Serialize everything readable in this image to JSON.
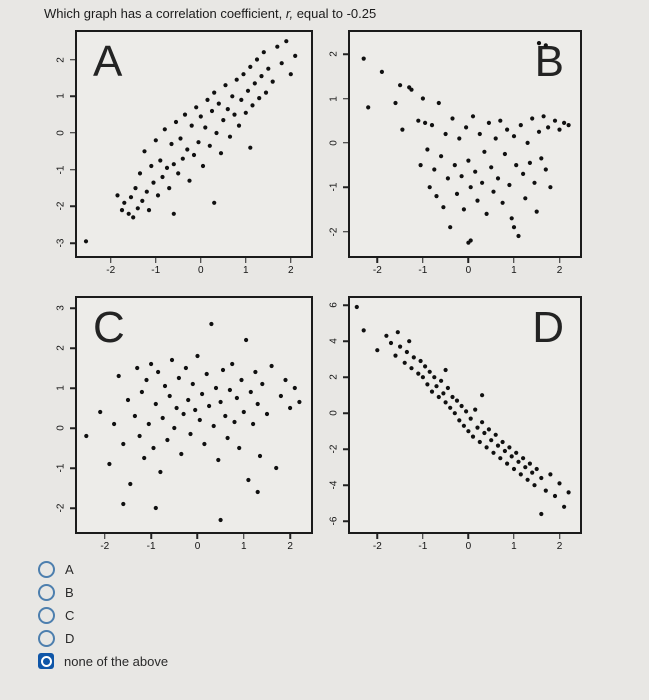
{
  "question": {
    "prefix": "Which graph has a correlation coefficient, ",
    "rvar": "r,",
    "suffix": " equal to -0.25"
  },
  "options": [
    {
      "label": "A",
      "selected": false
    },
    {
      "label": "B",
      "selected": false
    },
    {
      "label": "C",
      "selected": false
    },
    {
      "label": "D",
      "selected": false
    },
    {
      "label": "none of the above",
      "selected": true
    }
  ],
  "colors": {
    "point": "#101010",
    "plot_border": "#1b1b1b",
    "radio_border": "#4d7fae",
    "selected_fill": "#0f56a8",
    "background": "#e8e7e4"
  },
  "chart_data": [
    {
      "type": "scatter",
      "label": "A",
      "correlation": "strong positive",
      "xlim": [
        -2.75,
        2.45
      ],
      "ylim": [
        -3.35,
        2.75
      ],
      "x_ticks": [
        -2,
        -1,
        0,
        1,
        2
      ],
      "y_ticks": [
        2,
        1,
        0,
        -1,
        -2,
        -3
      ],
      "points": [
        [
          -2.55,
          -2.95
        ],
        [
          -1.85,
          -1.7
        ],
        [
          -1.75,
          -2.1
        ],
        [
          -1.7,
          -1.9
        ],
        [
          -1.6,
          -2.2
        ],
        [
          -1.55,
          -1.75
        ],
        [
          -1.5,
          -2.3
        ],
        [
          -1.45,
          -1.5
        ],
        [
          -1.4,
          -2.05
        ],
        [
          -1.35,
          -1.1
        ],
        [
          -1.3,
          -1.85
        ],
        [
          -1.25,
          -0.5
        ],
        [
          -1.2,
          -1.6
        ],
        [
          -1.15,
          -2.1
        ],
        [
          -1.1,
          -0.9
        ],
        [
          -1.05,
          -1.35
        ],
        [
          -1.0,
          -0.2
        ],
        [
          -0.95,
          -1.7
        ],
        [
          -0.9,
          -0.75
        ],
        [
          -0.85,
          -1.2
        ],
        [
          -0.8,
          0.1
        ],
        [
          -0.75,
          -0.95
        ],
        [
          -0.7,
          -1.5
        ],
        [
          -0.65,
          -0.3
        ],
        [
          -0.6,
          -0.85
        ],
        [
          -0.55,
          0.3
        ],
        [
          -0.5,
          -1.1
        ],
        [
          -0.45,
          -0.15
        ],
        [
          -0.4,
          -0.7
        ],
        [
          -0.35,
          0.5
        ],
        [
          -0.3,
          -0.45
        ],
        [
          -0.25,
          -1.3
        ],
        [
          -0.2,
          0.2
        ],
        [
          -0.15,
          -0.6
        ],
        [
          -0.1,
          0.7
        ],
        [
          -0.05,
          -0.25
        ],
        [
          0.0,
          0.45
        ],
        [
          0.05,
          -0.9
        ],
        [
          0.1,
          0.15
        ],
        [
          0.15,
          0.9
        ],
        [
          0.2,
          -0.35
        ],
        [
          0.25,
          0.6
        ],
        [
          0.3,
          1.1
        ],
        [
          0.35,
          0.0
        ],
        [
          0.4,
          0.8
        ],
        [
          0.45,
          -0.55
        ],
        [
          0.5,
          0.35
        ],
        [
          0.55,
          1.3
        ],
        [
          0.6,
          0.65
        ],
        [
          0.65,
          -0.1
        ],
        [
          0.7,
          1.0
        ],
        [
          0.75,
          0.5
        ],
        [
          0.8,
          1.45
        ],
        [
          0.85,
          0.2
        ],
        [
          0.9,
          0.9
        ],
        [
          0.95,
          1.6
        ],
        [
          1.0,
          0.55
        ],
        [
          1.05,
          1.15
        ],
        [
          1.1,
          1.8
        ],
        [
          1.15,
          0.75
        ],
        [
          1.2,
          1.35
        ],
        [
          1.25,
          2.0
        ],
        [
          1.3,
          0.95
        ],
        [
          1.35,
          1.55
        ],
        [
          1.4,
          2.2
        ],
        [
          1.45,
          1.1
        ],
        [
          1.5,
          1.75
        ],
        [
          1.6,
          1.4
        ],
        [
          1.7,
          2.35
        ],
        [
          1.8,
          1.9
        ],
        [
          1.9,
          2.5
        ],
        [
          2.0,
          1.6
        ],
        [
          2.1,
          2.1
        ],
        [
          0.3,
          -1.9
        ],
        [
          1.1,
          -0.4
        ],
        [
          -0.6,
          -2.2
        ]
      ]
    },
    {
      "type": "scatter",
      "label": "B",
      "correlation": "weak negative",
      "xlim": [
        -2.6,
        2.45
      ],
      "ylim": [
        -2.55,
        2.5
      ],
      "x_ticks": [
        -2,
        -1,
        0,
        1,
        2
      ],
      "y_ticks": [
        2,
        1,
        0,
        -1,
        -2
      ],
      "points": [
        [
          1.55,
          2.25
        ],
        [
          1.7,
          2.2
        ],
        [
          -2.3,
          1.9
        ],
        [
          -2.2,
          0.8
        ],
        [
          -1.9,
          1.6
        ],
        [
          -1.6,
          0.9
        ],
        [
          -1.5,
          1.3
        ],
        [
          -1.45,
          0.3
        ],
        [
          -1.3,
          1.25
        ],
        [
          -1.25,
          1.2
        ],
        [
          -1.1,
          0.5
        ],
        [
          -1.05,
          -0.5
        ],
        [
          -1.0,
          1.0
        ],
        [
          -0.95,
          0.45
        ],
        [
          -0.9,
          -0.15
        ],
        [
          -0.85,
          -1.0
        ],
        [
          -0.8,
          0.4
        ],
        [
          -0.75,
          -0.6
        ],
        [
          -0.7,
          -1.2
        ],
        [
          -0.65,
          0.9
        ],
        [
          -0.6,
          -0.3
        ],
        [
          -0.55,
          -1.45
        ],
        [
          -0.5,
          0.2
        ],
        [
          -0.45,
          -0.8
        ],
        [
          -0.4,
          -1.9
        ],
        [
          -0.35,
          0.55
        ],
        [
          -0.3,
          -0.5
        ],
        [
          -0.25,
          -1.15
        ],
        [
          -0.2,
          0.1
        ],
        [
          -0.15,
          -0.75
        ],
        [
          -0.1,
          -1.5
        ],
        [
          -0.05,
          0.35
        ],
        [
          0.0,
          -0.4
        ],
        [
          0.0,
          -2.25
        ],
        [
          0.05,
          -1.0
        ],
        [
          0.1,
          0.6
        ],
        [
          0.15,
          -0.65
        ],
        [
          0.2,
          -1.3
        ],
        [
          0.25,
          0.2
        ],
        [
          0.3,
          -0.9
        ],
        [
          0.35,
          -0.2
        ],
        [
          0.4,
          -1.6
        ],
        [
          0.45,
          0.45
        ],
        [
          0.5,
          -0.55
        ],
        [
          0.55,
          -1.1
        ],
        [
          0.6,
          0.1
        ],
        [
          0.65,
          -0.8
        ],
        [
          0.7,
          0.5
        ],
        [
          0.75,
          -1.35
        ],
        [
          0.8,
          -0.25
        ],
        [
          0.85,
          0.3
        ],
        [
          0.9,
          -0.95
        ],
        [
          0.95,
          -1.7
        ],
        [
          1.0,
          0.15
        ],
        [
          1.05,
          -0.5
        ],
        [
          1.1,
          -2.1
        ],
        [
          1.15,
          0.4
        ],
        [
          1.2,
          -0.7
        ],
        [
          1.25,
          -1.25
        ],
        [
          1.3,
          0.0
        ],
        [
          1.35,
          -0.45
        ],
        [
          1.4,
          0.55
        ],
        [
          1.45,
          -0.9
        ],
        [
          1.5,
          -1.55
        ],
        [
          1.55,
          0.25
        ],
        [
          1.6,
          -0.35
        ],
        [
          1.65,
          0.6
        ],
        [
          1.7,
          -0.6
        ],
        [
          1.75,
          0.35
        ],
        [
          1.8,
          -1.0
        ],
        [
          1.9,
          0.5
        ],
        [
          2.0,
          0.3
        ],
        [
          2.1,
          0.45
        ],
        [
          2.2,
          0.4
        ],
        [
          0.05,
          -2.2
        ],
        [
          1.0,
          -1.9
        ]
      ]
    },
    {
      "type": "scatter",
      "label": "C",
      "correlation": "weak positive",
      "xlim": [
        -2.6,
        2.45
      ],
      "ylim": [
        -2.6,
        3.25
      ],
      "x_ticks": [
        -2,
        -1,
        0,
        1,
        2
      ],
      "y_ticks": [
        3,
        2,
        1,
        0,
        -1,
        -2
      ],
      "points": [
        [
          -2.4,
          -0.2
        ],
        [
          -2.1,
          0.4
        ],
        [
          -1.9,
          -0.9
        ],
        [
          -1.8,
          0.1
        ],
        [
          -1.7,
          1.3
        ],
        [
          -1.6,
          -0.4
        ],
        [
          -1.5,
          0.7
        ],
        [
          -1.45,
          -1.4
        ],
        [
          -1.35,
          0.3
        ],
        [
          -1.3,
          1.5
        ],
        [
          -1.25,
          -0.2
        ],
        [
          -1.2,
          0.9
        ],
        [
          -1.15,
          -0.75
        ],
        [
          -1.1,
          1.2
        ],
        [
          -1.05,
          0.1
        ],
        [
          -1.0,
          1.6
        ],
        [
          -0.95,
          -0.5
        ],
        [
          -0.9,
          0.6
        ],
        [
          -0.85,
          1.4
        ],
        [
          -0.8,
          -1.1
        ],
        [
          -0.75,
          0.25
        ],
        [
          -0.7,
          1.05
        ],
        [
          -0.65,
          -0.3
        ],
        [
          -0.6,
          0.8
        ],
        [
          -0.55,
          1.7
        ],
        [
          -0.5,
          0.0
        ],
        [
          -0.45,
          0.5
        ],
        [
          -0.4,
          1.25
        ],
        [
          -0.35,
          -0.65
        ],
        [
          -0.3,
          0.35
        ],
        [
          -0.25,
          1.5
        ],
        [
          -0.2,
          0.7
        ],
        [
          -0.15,
          -0.15
        ],
        [
          -0.1,
          1.1
        ],
        [
          -0.05,
          0.45
        ],
        [
          0.0,
          1.8
        ],
        [
          0.05,
          0.2
        ],
        [
          0.1,
          0.85
        ],
        [
          0.15,
          -0.4
        ],
        [
          0.2,
          1.35
        ],
        [
          0.25,
          0.55
        ],
        [
          0.3,
          2.6
        ],
        [
          0.35,
          0.05
        ],
        [
          0.4,
          1.0
        ],
        [
          0.45,
          -0.8
        ],
        [
          0.5,
          0.65
        ],
        [
          0.55,
          1.45
        ],
        [
          0.6,
          0.3
        ],
        [
          0.65,
          -0.25
        ],
        [
          0.7,
          0.95
        ],
        [
          0.75,
          1.6
        ],
        [
          0.8,
          0.15
        ],
        [
          0.85,
          0.75
        ],
        [
          0.9,
          -0.5
        ],
        [
          0.95,
          1.2
        ],
        [
          1.0,
          0.4
        ],
        [
          1.05,
          2.2
        ],
        [
          1.1,
          -1.3
        ],
        [
          1.15,
          0.9
        ],
        [
          1.2,
          0.1
        ],
        [
          1.25,
          1.4
        ],
        [
          1.3,
          0.6
        ],
        [
          1.35,
          -0.7
        ],
        [
          1.4,
          1.1
        ],
        [
          1.5,
          0.35
        ],
        [
          1.6,
          1.55
        ],
        [
          1.7,
          -1.0
        ],
        [
          1.8,
          0.8
        ],
        [
          1.9,
          1.2
        ],
        [
          2.0,
          0.5
        ],
        [
          2.1,
          1.0
        ],
        [
          2.2,
          0.65
        ],
        [
          -0.9,
          -2.0
        ],
        [
          0.5,
          -2.3
        ],
        [
          1.3,
          -1.6
        ],
        [
          -1.6,
          -1.9
        ]
      ]
    },
    {
      "type": "scatter",
      "label": "D",
      "correlation": "strong negative",
      "xlim": [
        -2.6,
        2.45
      ],
      "ylim": [
        -6.6,
        6.4
      ],
      "x_ticks": [
        -2,
        -1,
        0,
        1,
        2
      ],
      "y_ticks": [
        6,
        4,
        2,
        0,
        -2,
        -4,
        -6
      ],
      "points": [
        [
          -2.45,
          5.9
        ],
        [
          -2.3,
          4.6
        ],
        [
          -2.0,
          3.5
        ],
        [
          -1.8,
          4.3
        ],
        [
          -1.7,
          3.9
        ],
        [
          -1.6,
          3.2
        ],
        [
          -1.55,
          4.5
        ],
        [
          -1.5,
          3.7
        ],
        [
          -1.4,
          2.8
        ],
        [
          -1.35,
          3.4
        ],
        [
          -1.3,
          4.0
        ],
        [
          -1.25,
          2.5
        ],
        [
          -1.2,
          3.1
        ],
        [
          -1.1,
          2.2
        ],
        [
          -1.05,
          2.9
        ],
        [
          -1.0,
          2.0
        ],
        [
          -0.95,
          2.6
        ],
        [
          -0.9,
          1.6
        ],
        [
          -0.85,
          2.3
        ],
        [
          -0.8,
          1.2
        ],
        [
          -0.75,
          2.0
        ],
        [
          -0.7,
          1.5
        ],
        [
          -0.65,
          0.9
        ],
        [
          -0.6,
          1.8
        ],
        [
          -0.55,
          1.1
        ],
        [
          -0.5,
          0.6
        ],
        [
          -0.45,
          1.4
        ],
        [
          -0.4,
          0.3
        ],
        [
          -0.35,
          0.9
        ],
        [
          -0.3,
          0.0
        ],
        [
          -0.25,
          0.7
        ],
        [
          -0.2,
          -0.4
        ],
        [
          -0.15,
          0.4
        ],
        [
          -0.1,
          -0.7
        ],
        [
          -0.05,
          0.1
        ],
        [
          0.0,
          -1.0
        ],
        [
          0.05,
          -0.3
        ],
        [
          0.1,
          -1.3
        ],
        [
          0.15,
          0.2
        ],
        [
          0.2,
          -0.8
        ],
        [
          0.25,
          -1.6
        ],
        [
          0.3,
          -0.5
        ],
        [
          0.35,
          -1.1
        ],
        [
          0.4,
          -1.9
        ],
        [
          0.45,
          -0.9
        ],
        [
          0.5,
          -1.5
        ],
        [
          0.55,
          -2.2
        ],
        [
          0.6,
          -1.2
        ],
        [
          0.65,
          -1.8
        ],
        [
          0.7,
          -2.5
        ],
        [
          0.75,
          -1.6
        ],
        [
          0.8,
          -2.1
        ],
        [
          0.85,
          -2.8
        ],
        [
          0.9,
          -1.9
        ],
        [
          0.95,
          -2.4
        ],
        [
          1.0,
          -3.1
        ],
        [
          1.05,
          -2.2
        ],
        [
          1.1,
          -2.7
        ],
        [
          1.15,
          -3.4
        ],
        [
          1.2,
          -2.5
        ],
        [
          1.25,
          -3.0
        ],
        [
          1.3,
          -3.7
        ],
        [
          1.35,
          -2.8
        ],
        [
          1.4,
          -3.3
        ],
        [
          1.45,
          -4.0
        ],
        [
          1.5,
          -3.1
        ],
        [
          1.6,
          -3.6
        ],
        [
          1.7,
          -4.3
        ],
        [
          1.8,
          -3.4
        ],
        [
          1.9,
          -4.6
        ],
        [
          2.0,
          -3.9
        ],
        [
          2.1,
          -5.2
        ],
        [
          2.2,
          -4.4
        ],
        [
          1.6,
          -5.6
        ],
        [
          0.3,
          1.0
        ],
        [
          -0.5,
          2.4
        ]
      ]
    }
  ]
}
